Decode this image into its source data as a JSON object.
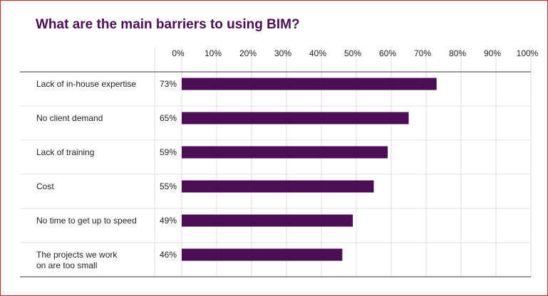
{
  "chart_data": {
    "type": "bar",
    "orientation": "horizontal",
    "title": "What are the main barriers to using BIM?",
    "categories": [
      [
        "Lack of in-house expertise"
      ],
      [
        "No client demand"
      ],
      [
        "Lack of training"
      ],
      [
        "Cost"
      ],
      [
        "No time to get up to speed"
      ],
      [
        "The projects we work",
        "on are too small"
      ]
    ],
    "values": [
      73,
      65,
      59,
      55,
      49,
      46
    ],
    "value_labels": [
      "73%",
      "65%",
      "59%",
      "55%",
      "49%",
      "46%"
    ],
    "x_ticks": [
      "0%",
      "10%",
      "20%",
      "30%",
      "40%",
      "50%",
      "60%",
      "70%",
      "80%",
      "90%",
      "100%"
    ],
    "xlim": [
      0,
      100
    ],
    "grid": true,
    "bar_color": "#4b0e55",
    "title_color": "#4b0e55",
    "frame_color": "#d6242a"
  }
}
